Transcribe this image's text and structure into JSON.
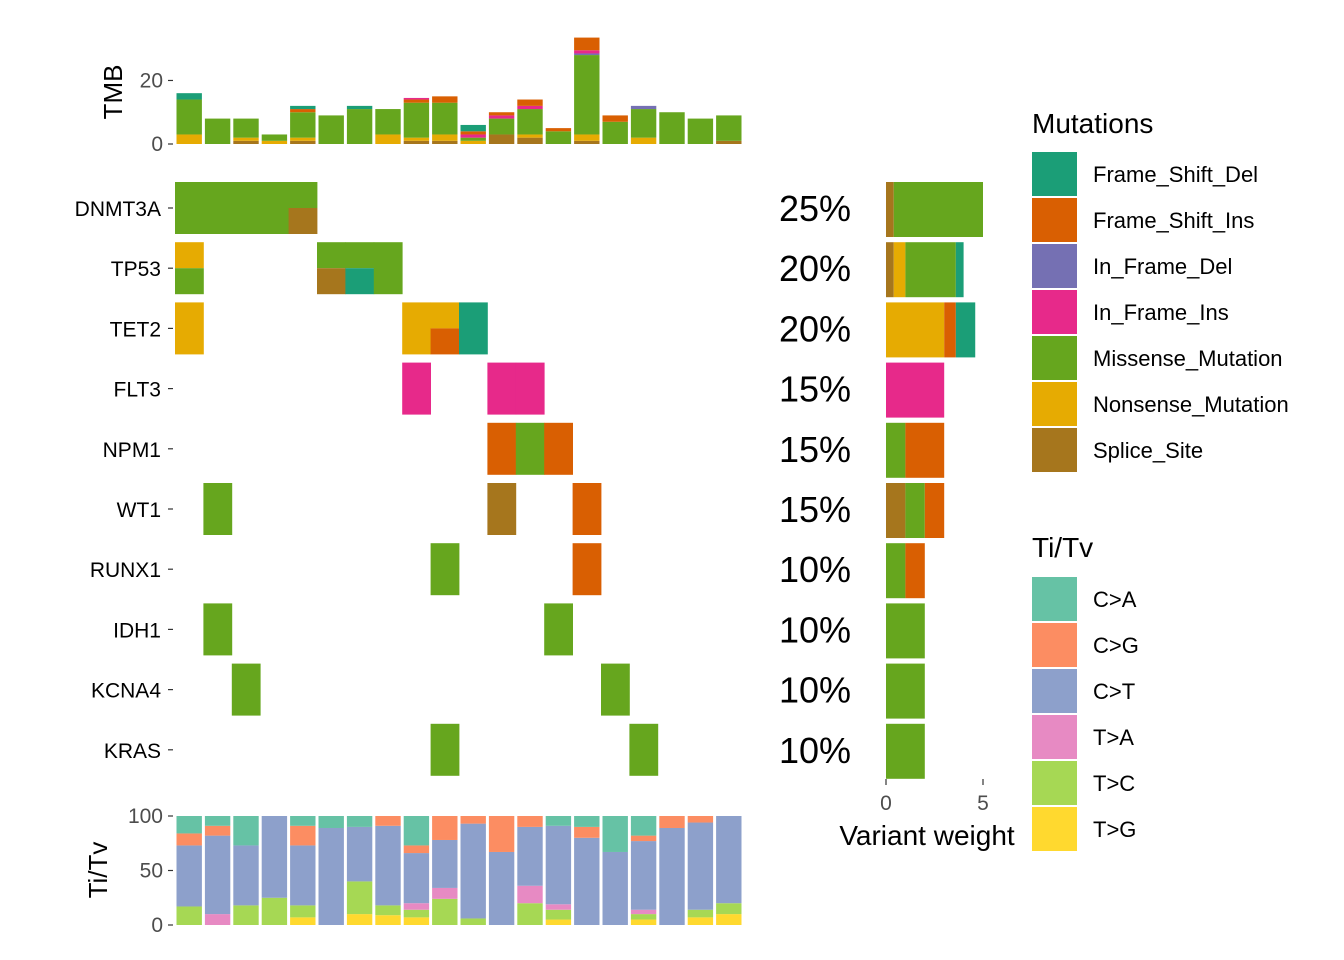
{
  "colors": {
    "Frame_Shift_Del": "#1b9e77",
    "Frame_Shift_Ins": "#d95f02",
    "In_Frame_Del": "#7570b3",
    "In_Frame_Ins": "#e7298a",
    "Missense_Mutation": "#66a61e",
    "Nonsense_Mutation": "#e6ab02",
    "Splice_Site": "#a6761d",
    "C>A": "#66c2a5",
    "C>G": "#fc8d62",
    "C>T": "#8da0cb",
    "T>A": "#e78ac3",
    "T>C": "#a6d854",
    "T>G": "#ffd92f"
  },
  "chart_data": {
    "type": "oncoplot",
    "n_samples": 20,
    "mutation_types": [
      "Frame_Shift_Del",
      "Frame_Shift_Ins",
      "In_Frame_Del",
      "In_Frame_Ins",
      "Missense_Mutation",
      "Nonsense_Mutation",
      "Splice_Site"
    ],
    "tmb": {
      "ylabel": "TMB",
      "ticks": [
        "0",
        "20"
      ],
      "ylim": [
        0,
        34
      ],
      "stacks": [
        [
          [
            "Nonsense_Mutation",
            3
          ],
          [
            "Missense_Mutation",
            11
          ],
          [
            "Frame_Shift_Del",
            2
          ]
        ],
        [
          [
            "Missense_Mutation",
            8
          ]
        ],
        [
          [
            "Splice_Site",
            1
          ],
          [
            "Nonsense_Mutation",
            1
          ],
          [
            "Missense_Mutation",
            6
          ]
        ],
        [
          [
            "Nonsense_Mutation",
            1
          ],
          [
            "Missense_Mutation",
            2
          ]
        ],
        [
          [
            "Splice_Site",
            1
          ],
          [
            "Nonsense_Mutation",
            1
          ],
          [
            "Missense_Mutation",
            8
          ],
          [
            "Frame_Shift_Ins",
            1
          ],
          [
            "Frame_Shift_Del",
            1
          ]
        ],
        [
          [
            "Missense_Mutation",
            9
          ]
        ],
        [
          [
            "Missense_Mutation",
            11
          ],
          [
            "Frame_Shift_Del",
            1
          ]
        ],
        [
          [
            "Nonsense_Mutation",
            3
          ],
          [
            "Missense_Mutation",
            8
          ]
        ],
        [
          [
            "Splice_Site",
            1
          ],
          [
            "Nonsense_Mutation",
            1
          ],
          [
            "Missense_Mutation",
            11
          ],
          [
            "Frame_Shift_Ins",
            1
          ],
          [
            "In_Frame_Ins",
            0.5
          ]
        ],
        [
          [
            "Splice_Site",
            1
          ],
          [
            "Nonsense_Mutation",
            2
          ],
          [
            "Missense_Mutation",
            10
          ],
          [
            "Frame_Shift_Ins",
            2
          ]
        ],
        [
          [
            "Nonsense_Mutation",
            1
          ],
          [
            "Missense_Mutation",
            1
          ],
          [
            "In_Frame_Ins",
            1
          ],
          [
            "Frame_Shift_Ins",
            1
          ],
          [
            "Frame_Shift_Del",
            2
          ]
        ],
        [
          [
            "Splice_Site",
            3
          ],
          [
            "Missense_Mutation",
            5
          ],
          [
            "In_Frame_Ins",
            1
          ],
          [
            "Frame_Shift_Ins",
            1
          ]
        ],
        [
          [
            "Splice_Site",
            2
          ],
          [
            "Nonsense_Mutation",
            1
          ],
          [
            "Missense_Mutation",
            8
          ],
          [
            "In_Frame_Ins",
            1
          ],
          [
            "Frame_Shift_Ins",
            2
          ]
        ],
        [
          [
            "Missense_Mutation",
            4
          ],
          [
            "Frame_Shift_Ins",
            1
          ]
        ],
        [
          [
            "Splice_Site",
            1
          ],
          [
            "Nonsense_Mutation",
            2
          ],
          [
            "Missense_Mutation",
            25
          ],
          [
            "In_Frame_Del",
            0.5
          ],
          [
            "In_Frame_Ins",
            1
          ],
          [
            "Frame_Shift_Ins",
            4
          ]
        ],
        [
          [
            "Missense_Mutation",
            7
          ],
          [
            "Frame_Shift_Ins",
            2
          ]
        ],
        [
          [
            "Nonsense_Mutation",
            2
          ],
          [
            "Missense_Mutation",
            9
          ],
          [
            "In_Frame_Del",
            1
          ]
        ],
        [
          [
            "Missense_Mutation",
            10
          ]
        ],
        [
          [
            "Missense_Mutation",
            8
          ]
        ],
        [
          [
            "Splice_Site",
            1
          ],
          [
            "Missense_Mutation",
            8
          ]
        ]
      ]
    },
    "genes": [
      {
        "name": "DNMT3A",
        "pct": "25%",
        "cells": [
          {
            "s": 0,
            "t": "Missense_Mutation"
          },
          {
            "s": 1,
            "t": "Missense_Mutation"
          },
          {
            "s": 2,
            "t": "Missense_Mutation"
          },
          {
            "s": 3,
            "t": "Missense_Mutation"
          },
          {
            "s": 4,
            "t": "Missense_Mutation",
            "t2": "Splice_Site"
          }
        ],
        "weights": [
          [
            "Splice_Site",
            0.4
          ],
          [
            "Missense_Mutation",
            4.6
          ]
        ]
      },
      {
        "name": "TP53",
        "pct": "20%",
        "cells": [
          {
            "s": 0,
            "t": "Nonsense_Mutation",
            "t2": "Missense_Mutation"
          },
          {
            "s": 5,
            "t": "Missense_Mutation",
            "t2": "Splice_Site"
          },
          {
            "s": 6,
            "t": "Missense_Mutation",
            "t2": "Frame_Shift_Del"
          },
          {
            "s": 7,
            "t": "Missense_Mutation"
          }
        ],
        "weights": [
          [
            "Splice_Site",
            0.4
          ],
          [
            "Nonsense_Mutation",
            0.6
          ],
          [
            "Missense_Mutation",
            2.6
          ],
          [
            "Frame_Shift_Del",
            0.4
          ]
        ]
      },
      {
        "name": "TET2",
        "pct": "20%",
        "cells": [
          {
            "s": 0,
            "t": "Nonsense_Mutation"
          },
          {
            "s": 8,
            "t": "Nonsense_Mutation"
          },
          {
            "s": 9,
            "t": "Nonsense_Mutation",
            "t2": "Frame_Shift_Ins"
          },
          {
            "s": 10,
            "t": "Frame_Shift_Del"
          }
        ],
        "weights": [
          [
            "Nonsense_Mutation",
            3
          ],
          [
            "Frame_Shift_Ins",
            0.6
          ],
          [
            "Frame_Shift_Del",
            1
          ]
        ]
      },
      {
        "name": "FLT3",
        "pct": "15%",
        "cells": [
          {
            "s": 8,
            "t": "In_Frame_Ins"
          },
          {
            "s": 11,
            "t": "In_Frame_Ins"
          },
          {
            "s": 12,
            "t": "In_Frame_Ins"
          }
        ],
        "weights": [
          [
            "In_Frame_Ins",
            3
          ]
        ]
      },
      {
        "name": "NPM1",
        "pct": "15%",
        "cells": [
          {
            "s": 11,
            "t": "Frame_Shift_Ins"
          },
          {
            "s": 12,
            "t": "Missense_Mutation"
          },
          {
            "s": 13,
            "t": "Frame_Shift_Ins"
          }
        ],
        "weights": [
          [
            "Missense_Mutation",
            1
          ],
          [
            "Frame_Shift_Ins",
            2
          ]
        ]
      },
      {
        "name": "WT1",
        "pct": "15%",
        "cells": [
          {
            "s": 1,
            "t": "Missense_Mutation"
          },
          {
            "s": 11,
            "t": "Splice_Site"
          },
          {
            "s": 14,
            "t": "Frame_Shift_Ins"
          }
        ],
        "weights": [
          [
            "Splice_Site",
            1
          ],
          [
            "Missense_Mutation",
            1
          ],
          [
            "Frame_Shift_Ins",
            1
          ]
        ]
      },
      {
        "name": "RUNX1",
        "pct": "10%",
        "cells": [
          {
            "s": 9,
            "t": "Missense_Mutation"
          },
          {
            "s": 14,
            "t": "Frame_Shift_Ins"
          }
        ],
        "weights": [
          [
            "Missense_Mutation",
            1
          ],
          [
            "Frame_Shift_Ins",
            1
          ]
        ]
      },
      {
        "name": "IDH1",
        "pct": "10%",
        "cells": [
          {
            "s": 1,
            "t": "Missense_Mutation"
          },
          {
            "s": 13,
            "t": "Missense_Mutation"
          }
        ],
        "weights": [
          [
            "Missense_Mutation",
            2
          ]
        ]
      },
      {
        "name": "KCNA4",
        "pct": "10%",
        "cells": [
          {
            "s": 2,
            "t": "Missense_Mutation"
          },
          {
            "s": 15,
            "t": "Missense_Mutation"
          }
        ],
        "weights": [
          [
            "Missense_Mutation",
            2
          ]
        ]
      },
      {
        "name": "KRAS",
        "pct": "10%",
        "cells": [
          {
            "s": 9,
            "t": "Missense_Mutation"
          },
          {
            "s": 16,
            "t": "Missense_Mutation"
          }
        ],
        "weights": [
          [
            "Missense_Mutation",
            2
          ]
        ]
      }
    ],
    "variant_weight": {
      "xlabel": "Variant weight",
      "ticks": [
        "0",
        "5"
      ],
      "xlim": [
        0,
        5
      ]
    },
    "titv": {
      "ylabel": "Ti/Tv",
      "ticks": [
        "0",
        "50",
        "100"
      ],
      "ylim": [
        0,
        100
      ],
      "classes": [
        "T>G",
        "T>C",
        "T>A",
        "C>T",
        "C>G",
        "C>A"
      ],
      "stacks": [
        [
          [
            "T>G",
            0
          ],
          [
            "T>C",
            17
          ],
          [
            "T>A",
            0
          ],
          [
            "C>T",
            56
          ],
          [
            "C>G",
            11
          ],
          [
            "C>A",
            16
          ]
        ],
        [
          [
            "T>G",
            0
          ],
          [
            "T>C",
            0
          ],
          [
            "T>A",
            10
          ],
          [
            "C>T",
            72
          ],
          [
            "C>G",
            9
          ],
          [
            "C>A",
            9
          ]
        ],
        [
          [
            "T>G",
            0
          ],
          [
            "T>C",
            18
          ],
          [
            "T>A",
            0
          ],
          [
            "C>T",
            55
          ],
          [
            "C>G",
            0
          ],
          [
            "C>A",
            27
          ]
        ],
        [
          [
            "T>G",
            0
          ],
          [
            "T>C",
            25
          ],
          [
            "T>A",
            0
          ],
          [
            "C>T",
            75
          ],
          [
            "C>G",
            0
          ],
          [
            "C>A",
            0
          ]
        ],
        [
          [
            "T>G",
            7
          ],
          [
            "T>C",
            11
          ],
          [
            "T>A",
            0
          ],
          [
            "C>T",
            55
          ],
          [
            "C>G",
            18
          ],
          [
            "C>A",
            9
          ]
        ],
        [
          [
            "T>G",
            0
          ],
          [
            "T>C",
            0
          ],
          [
            "T>A",
            0
          ],
          [
            "C>T",
            89
          ],
          [
            "C>G",
            0
          ],
          [
            "C>A",
            11
          ]
        ],
        [
          [
            "T>G",
            10
          ],
          [
            "T>C",
            30
          ],
          [
            "T>A",
            0
          ],
          [
            "C>T",
            50
          ],
          [
            "C>G",
            0
          ],
          [
            "C>A",
            10
          ]
        ],
        [
          [
            "T>G",
            9
          ],
          [
            "T>C",
            9
          ],
          [
            "T>A",
            0
          ],
          [
            "C>T",
            73
          ],
          [
            "C>G",
            9
          ],
          [
            "C>A",
            0
          ]
        ],
        [
          [
            "T>G",
            7
          ],
          [
            "T>C",
            7
          ],
          [
            "T>A",
            6
          ],
          [
            "C>T",
            46
          ],
          [
            "C>G",
            7
          ],
          [
            "C>A",
            27
          ]
        ],
        [
          [
            "T>G",
            0
          ],
          [
            "T>C",
            24
          ],
          [
            "T>A",
            10
          ],
          [
            "C>T",
            44
          ],
          [
            "C>G",
            22
          ],
          [
            "C>A",
            0
          ]
        ],
        [
          [
            "T>G",
            0
          ],
          [
            "T>C",
            6
          ],
          [
            "T>A",
            0
          ],
          [
            "C>T",
            87
          ],
          [
            "C>G",
            7
          ],
          [
            "C>A",
            0
          ]
        ],
        [
          [
            "T>G",
            0
          ],
          [
            "T>C",
            0
          ],
          [
            "T>A",
            0
          ],
          [
            "C>T",
            67
          ],
          [
            "C>G",
            33
          ],
          [
            "C>A",
            0
          ]
        ],
        [
          [
            "T>G",
            0
          ],
          [
            "T>C",
            20
          ],
          [
            "T>A",
            16
          ],
          [
            "C>T",
            54
          ],
          [
            "C>G",
            10
          ],
          [
            "C>A",
            0
          ]
        ],
        [
          [
            "T>G",
            5
          ],
          [
            "T>C",
            9
          ],
          [
            "T>A",
            5
          ],
          [
            "C>T",
            72
          ],
          [
            "C>G",
            0
          ],
          [
            "C>A",
            9
          ]
        ],
        [
          [
            "T>G",
            0
          ],
          [
            "T>C",
            0
          ],
          [
            "T>A",
            0
          ],
          [
            "C>T",
            80
          ],
          [
            "C>G",
            10
          ],
          [
            "C>A",
            10
          ]
        ],
        [
          [
            "T>G",
            0
          ],
          [
            "T>C",
            0
          ],
          [
            "T>A",
            0
          ],
          [
            "C>T",
            67
          ],
          [
            "C>G",
            0
          ],
          [
            "C>A",
            33
          ]
        ],
        [
          [
            "T>G",
            5
          ],
          [
            "T>C",
            5
          ],
          [
            "T>A",
            4
          ],
          [
            "C>T",
            63
          ],
          [
            "C>G",
            5
          ],
          [
            "C>A",
            18
          ]
        ],
        [
          [
            "T>G",
            0
          ],
          [
            "T>C",
            0
          ],
          [
            "T>A",
            0
          ],
          [
            "C>T",
            89
          ],
          [
            "C>G",
            11
          ],
          [
            "C>A",
            0
          ]
        ],
        [
          [
            "T>G",
            7
          ],
          [
            "T>C",
            7
          ],
          [
            "T>A",
            0
          ],
          [
            "C>T",
            80
          ],
          [
            "C>G",
            6
          ],
          [
            "C>A",
            0
          ]
        ],
        [
          [
            "T>G",
            10
          ],
          [
            "T>C",
            10
          ],
          [
            "T>A",
            0
          ],
          [
            "C>T",
            80
          ],
          [
            "C>G",
            0
          ],
          [
            "C>A",
            0
          ]
        ]
      ]
    },
    "legends": {
      "mutations": {
        "title": "Mutations",
        "items": [
          "Frame_Shift_Del",
          "Frame_Shift_Ins",
          "In_Frame_Del",
          "In_Frame_Ins",
          "Missense_Mutation",
          "Nonsense_Mutation",
          "Splice_Site"
        ]
      },
      "titv": {
        "title": "Ti/Tv",
        "items": [
          "C>A",
          "C>G",
          "C>T",
          "T>A",
          "T>C",
          "T>G"
        ]
      }
    }
  }
}
